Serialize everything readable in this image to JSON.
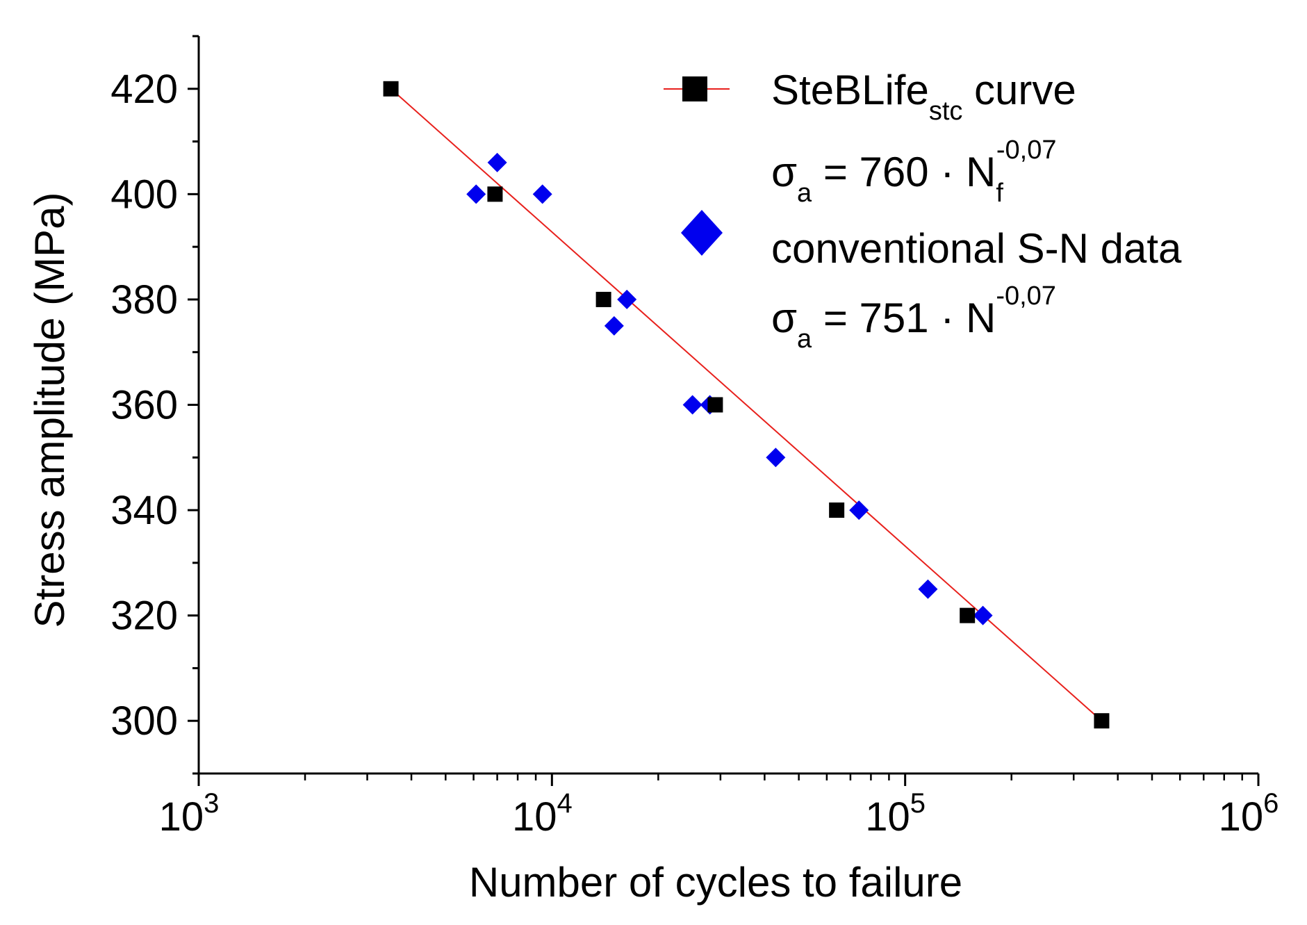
{
  "chart_data": {
    "type": "scatter",
    "xscale": "log",
    "xlim": [
      1000,
      1000000
    ],
    "ylim": [
      290,
      430
    ],
    "xlabel": "Number of cycles to failure",
    "ylabel": "Stress amplitude (MPa)",
    "x_ticks": [
      {
        "base": "10",
        "exp": "3"
      },
      {
        "base": "10",
        "exp": "4"
      },
      {
        "base": "10",
        "exp": "5"
      },
      {
        "base": "10",
        "exp": "6"
      }
    ],
    "y_ticks": [
      "300",
      "320",
      "340",
      "360",
      "380",
      "400",
      "420"
    ],
    "legend_position": "top-right",
    "series": [
      {
        "name": "SteBLife",
        "name_subscript": "stc",
        "name_suffix": " curve",
        "equation": {
          "lhs": "σ",
          "lhs_sub": "a",
          "mid": " = 760 · N",
          "mid_sub": "f",
          "exp": "-0,07"
        },
        "marker": "square",
        "color": "#000000",
        "line_color": "#e8201c",
        "points": [
          {
            "x": 3500,
            "y": 420
          },
          {
            "x": 6900,
            "y": 400
          },
          {
            "x": 14000,
            "y": 380
          },
          {
            "x": 29000,
            "y": 360
          },
          {
            "x": 64000,
            "y": 340
          },
          {
            "x": 150000,
            "y": 320
          },
          {
            "x": 360000,
            "y": 300
          }
        ]
      },
      {
        "name": "conventional S-N data",
        "equation": {
          "lhs": "σ",
          "lhs_sub": "a",
          "mid": " = 751 · N",
          "mid_sub": "",
          "exp": "-0,07"
        },
        "marker": "diamond",
        "color": "#0000ee",
        "points": [
          {
            "x": 6100,
            "y": 400
          },
          {
            "x": 7000,
            "y": 406
          },
          {
            "x": 9400,
            "y": 400
          },
          {
            "x": 15000,
            "y": 375
          },
          {
            "x": 16300,
            "y": 380
          },
          {
            "x": 25000,
            "y": 360
          },
          {
            "x": 28000,
            "y": 360
          },
          {
            "x": 43000,
            "y": 350
          },
          {
            "x": 74000,
            "y": 340
          },
          {
            "x": 116000,
            "y": 325
          },
          {
            "x": 166000,
            "y": 320
          }
        ]
      }
    ]
  }
}
